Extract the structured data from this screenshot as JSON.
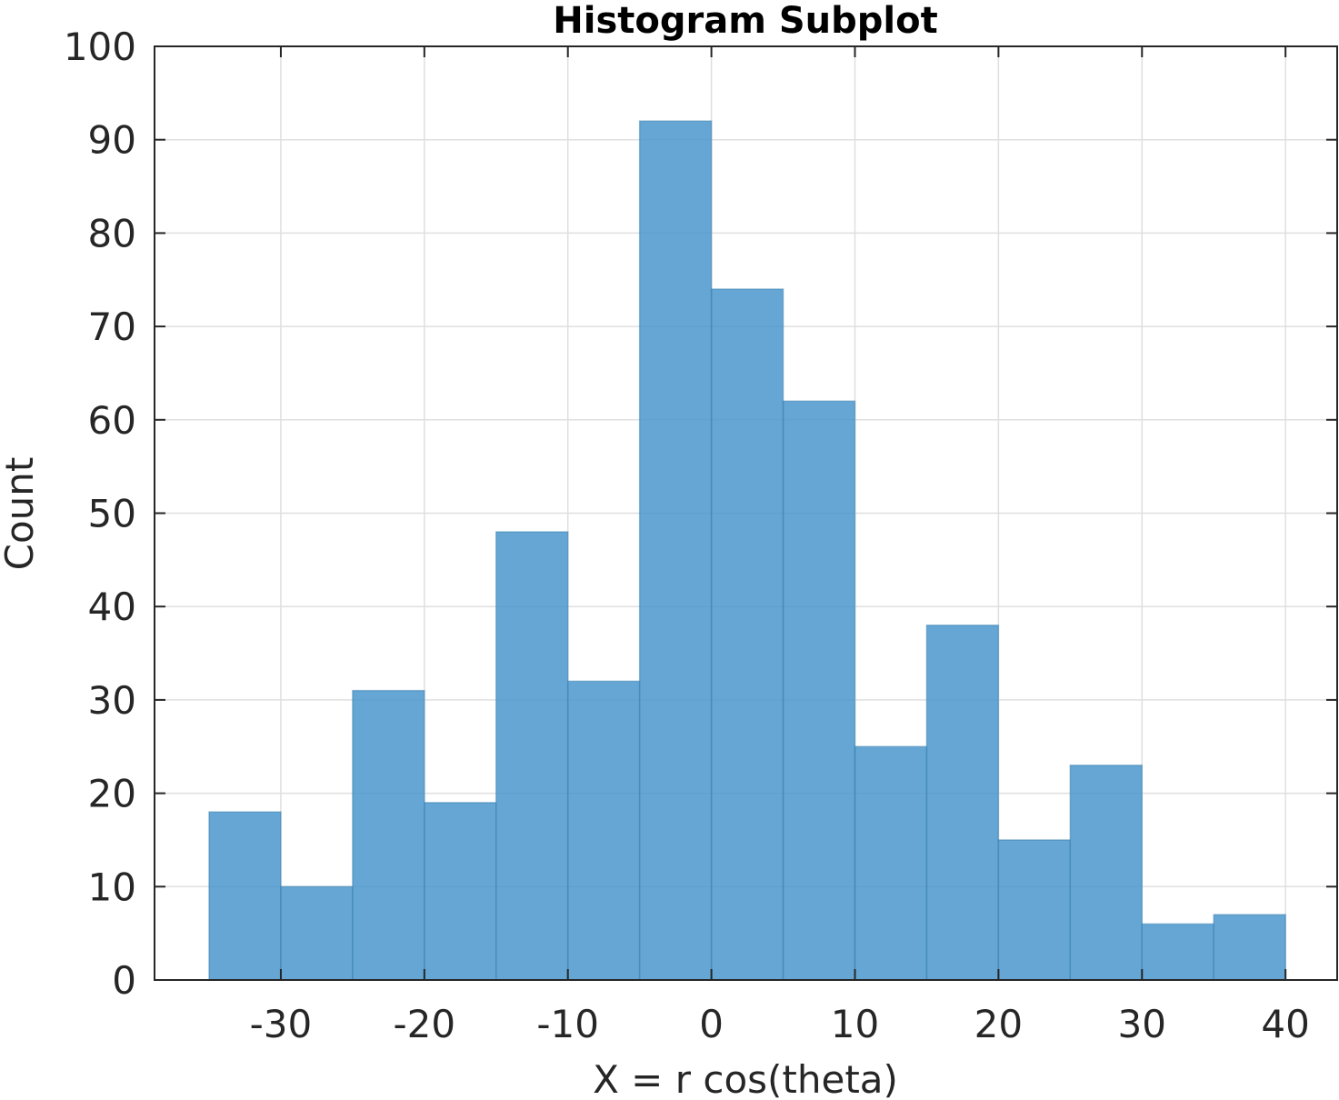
{
  "chart_data": {
    "type": "bar",
    "title": "Histogram Subplot",
    "xlabel": "X = r cos(theta)",
    "ylabel": "Count",
    "bin_edges": [
      -35,
      -30,
      -25,
      -20,
      -15,
      -10,
      -5,
      0,
      5,
      10,
      15,
      20,
      25,
      30,
      35,
      40
    ],
    "values": [
      18,
      10,
      31,
      19,
      48,
      32,
      92,
      74,
      62,
      25,
      38,
      15,
      23,
      6,
      7
    ],
    "xlim": [
      -38.8,
      43.6
    ],
    "ylim": [
      0,
      100
    ],
    "xticks": [
      -30,
      -20,
      -10,
      0,
      10,
      20,
      30,
      40
    ],
    "xtick_labels": [
      "-30",
      "-20",
      "-10",
      "0",
      "10",
      "20",
      "30",
      "40"
    ],
    "yticks": [
      0,
      10,
      20,
      30,
      40,
      50,
      60,
      70,
      80,
      90,
      100
    ],
    "ytick_labels": [
      "0",
      "10",
      "20",
      "30",
      "40",
      "50",
      "60",
      "70",
      "80",
      "90",
      "100"
    ],
    "grid": true,
    "bar_color": "#4a97cd"
  }
}
